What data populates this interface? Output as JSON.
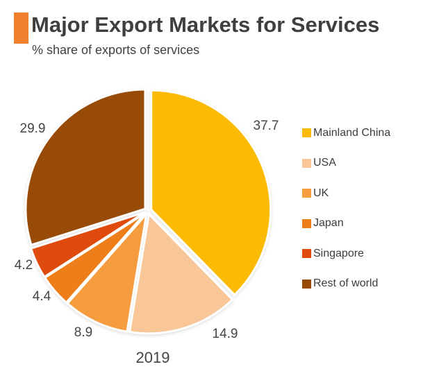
{
  "header": {
    "title": "Major Export Markets for Services",
    "subtitle": "% share of exports of services",
    "accent_color": "#F0802B"
  },
  "chart_data": {
    "type": "pie",
    "title": "Major Export Markets for Services",
    "subtitle": "% share of exports of services",
    "year_label": "2019",
    "unit": "% share",
    "direction": "clockwise",
    "start_angle_deg": 0,
    "exploded": true,
    "legend_position": "right",
    "categories": [
      "Mainland China",
      "USA",
      "UK",
      "Japan",
      "Singapore",
      "Rest of world"
    ],
    "values": [
      37.7,
      14.9,
      8.9,
      4.4,
      4.2,
      29.9
    ],
    "value_labels": [
      "37.7",
      "14.9",
      "8.9",
      "4.4",
      "4.2",
      "29.9"
    ],
    "colors": [
      "#FBBB04",
      "#F9C697",
      "#F49C3E",
      "#EE7E1A",
      "#DF4A0D",
      "#974B07"
    ]
  }
}
